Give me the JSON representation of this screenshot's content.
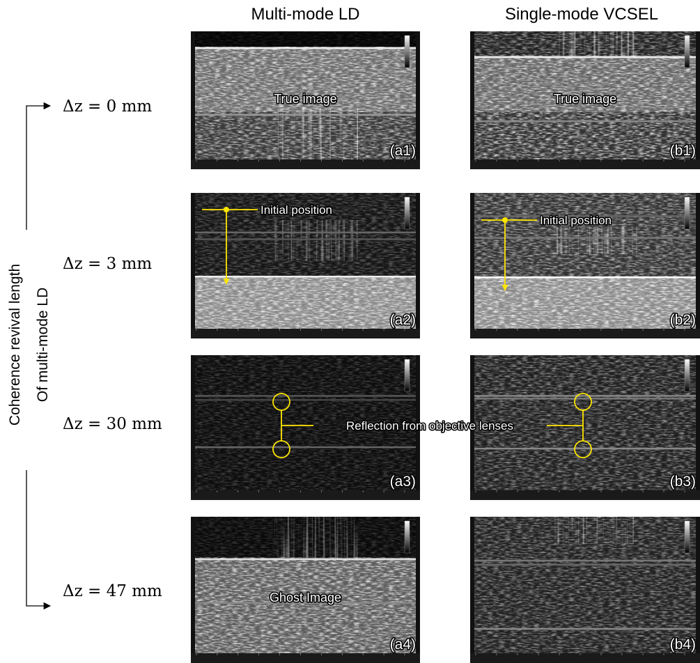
{
  "columns": [
    "Multi-mode LD",
    "Single-mode VCSEL"
  ],
  "rows": [
    "Δz = 0 mm",
    "Δz = 3 mm",
    "Δz = 30 mm",
    "Δz = 47 mm"
  ],
  "side_label": [
    "Coherence revival length",
    "Of multi-mode LD"
  ],
  "panels": [
    {
      "id": "(a1)",
      "caption": "True image"
    },
    {
      "id": "(b1)",
      "caption": "True image"
    },
    {
      "id": "(a2)",
      "annotation": "Initial position"
    },
    {
      "id": "(b2)",
      "annotation": "Initial position"
    },
    {
      "id": "(a3)"
    },
    {
      "id": "(b3)"
    },
    {
      "id": "(a4)",
      "caption": "Ghost Image"
    },
    {
      "id": "(b4)"
    }
  ],
  "reflection_label": "Reflection from objective lenses"
}
